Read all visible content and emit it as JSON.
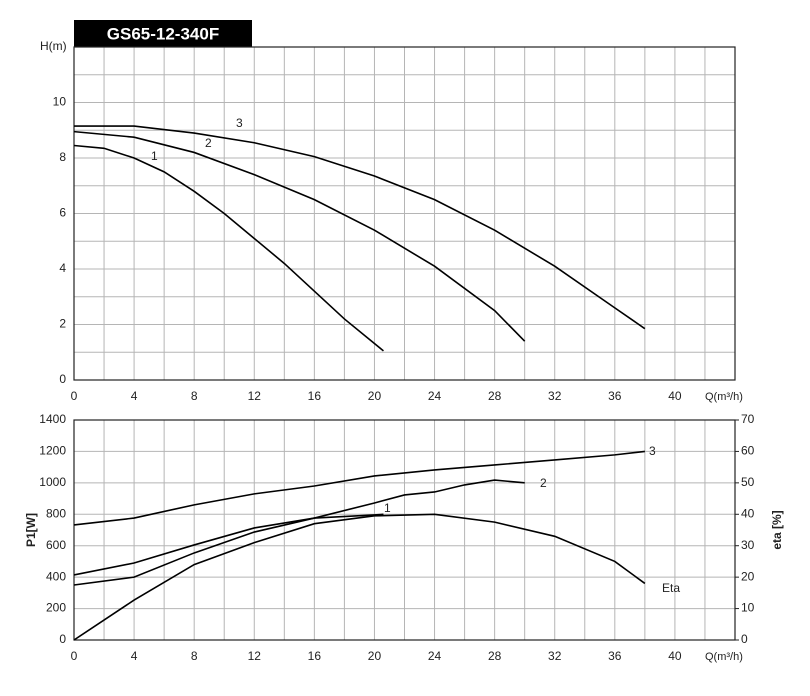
{
  "chart_data": [
    {
      "type": "line",
      "title": "GS65-12-340F",
      "ylabel": "H(m)",
      "xlabel": "Q(m³/h)",
      "xlim": [
        0,
        44
      ],
      "xticks": [
        0,
        4,
        8,
        12,
        16,
        20,
        24,
        28,
        32,
        36,
        40
      ],
      "x_minor_ticks": [
        2,
        6,
        10,
        14,
        18,
        22,
        26,
        30,
        34,
        38,
        42
      ],
      "ylim": [
        0,
        12
      ],
      "yticks": [
        0,
        2,
        4,
        6,
        8,
        10
      ],
      "y_minor_ticks": [
        1,
        3,
        5,
        7,
        9,
        11
      ],
      "grid": true,
      "series": [
        {
          "name": "1",
          "color": "#000000",
          "x": [
            0,
            2,
            4,
            6,
            8,
            10,
            12,
            14,
            16,
            18,
            20.6
          ],
          "values": [
            8.45,
            8.35,
            8.0,
            7.5,
            6.8,
            6.0,
            5.1,
            4.2,
            3.2,
            2.2,
            1.05
          ]
        },
        {
          "name": "2",
          "color": "#000000",
          "x": [
            0,
            4,
            8,
            12,
            16,
            20,
            24,
            28,
            30
          ],
          "values": [
            8.95,
            8.75,
            8.2,
            7.4,
            6.5,
            5.4,
            4.1,
            2.5,
            1.4
          ]
        },
        {
          "name": "3",
          "color": "#000000",
          "x": [
            0,
            4,
            8,
            12,
            16,
            20,
            24,
            28,
            32,
            36,
            38
          ],
          "values": [
            9.15,
            9.15,
            8.9,
            8.55,
            8.05,
            7.35,
            6.5,
            5.4,
            4.1,
            2.6,
            1.85
          ]
        }
      ]
    },
    {
      "type": "line",
      "ylabel": "P1[W]",
      "y2label": "eta [%]",
      "xlabel": "Q(m³/h)",
      "xlim": [
        0,
        44
      ],
      "xticks": [
        0,
        4,
        8,
        12,
        16,
        20,
        24,
        28,
        32,
        36,
        40
      ],
      "x_minor_ticks": [
        2,
        6,
        10,
        14,
        18,
        22,
        26,
        30,
        34,
        38,
        42
      ],
      "ylim": [
        0,
        1400
      ],
      "yticks": [
        0,
        200,
        400,
        600,
        800,
        1000,
        1200,
        1400
      ],
      "y2lim": [
        0,
        70
      ],
      "y2ticks": [
        0,
        10,
        20,
        30,
        40,
        50,
        60,
        70
      ],
      "grid": true,
      "series": [
        {
          "name": "1",
          "color": "#000000",
          "x": [
            0,
            4,
            8,
            12,
            16,
            20,
            20.6
          ],
          "values": [
            414,
            490,
            605,
            713,
            776,
            796,
            800
          ]
        },
        {
          "name": "2",
          "color": "#000000",
          "x": [
            0,
            4,
            8,
            12,
            16,
            20,
            22,
            24,
            26,
            28,
            30
          ],
          "values": [
            350,
            400,
            554,
            687,
            776,
            872,
            923,
            942,
            987,
            1018,
            1000
          ]
        },
        {
          "name": "3",
          "color": "#000000",
          "x": [
            0,
            4,
            8,
            12,
            16,
            20,
            24,
            28,
            32,
            36,
            38
          ],
          "values": [
            732,
            776,
            860,
            930,
            980,
            1044,
            1082,
            1114,
            1146,
            1178,
            1200
          ]
        },
        {
          "name": "Eta",
          "color": "#000000",
          "axis": "y2",
          "x": [
            0,
            4,
            8,
            12,
            16,
            20,
            24,
            28,
            32,
            36,
            38
          ],
          "values": [
            0,
            12.7,
            24,
            31,
            37,
            39.5,
            40,
            37.5,
            33,
            25,
            18
          ]
        }
      ]
    }
  ]
}
